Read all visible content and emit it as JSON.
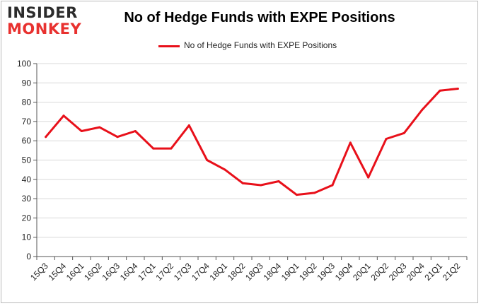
{
  "logo": {
    "line1": "INSIDER",
    "line2": "MONKEY"
  },
  "colors": {
    "series": "#e8101a",
    "grid": "#d9d9d9",
    "axis": "#555555",
    "logo_accent": "#e8312f"
  },
  "chart_data": {
    "type": "line",
    "title": "No of Hedge Funds with EXPE Positions",
    "xlabel": "",
    "ylabel": "",
    "ylim": [
      0,
      100
    ],
    "yticks": [
      0,
      10,
      20,
      30,
      40,
      50,
      60,
      70,
      80,
      90,
      100
    ],
    "grid": true,
    "legend": "top-center",
    "categories": [
      "15Q3",
      "15Q4",
      "16Q1",
      "16Q2",
      "16Q3",
      "16Q4",
      "17Q1",
      "17Q2",
      "17Q3",
      "17Q4",
      "18Q1",
      "18Q2",
      "18Q3",
      "18Q4",
      "19Q1",
      "19Q2",
      "19Q3",
      "19Q4",
      "20Q1",
      "20Q2",
      "20Q3",
      "20Q4",
      "21Q1",
      "21Q2"
    ],
    "series": [
      {
        "name": "No of Hedge Funds with EXPE Positions",
        "values": [
          62,
          73,
          65,
          67,
          62,
          65,
          56,
          56,
          68,
          50,
          45,
          38,
          37,
          39,
          32,
          33,
          37,
          59,
          41,
          61,
          64,
          76,
          86,
          87
        ]
      }
    ]
  }
}
